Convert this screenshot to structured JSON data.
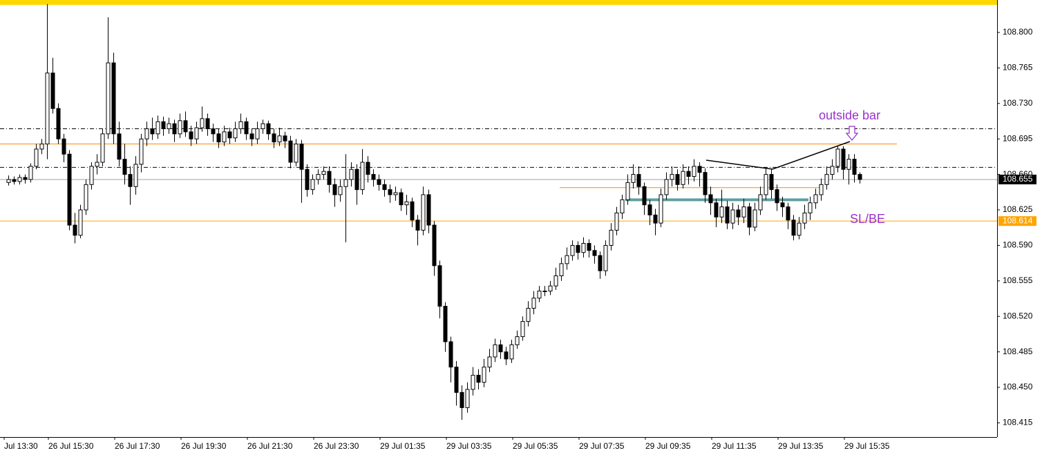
{
  "chart_data": {
    "type": "candlestick",
    "up_color": "#ffffff",
    "down_color": "#000000",
    "frame_color": "#ffd700",
    "ylim": [
      108.401,
      108.832
    ],
    "yticks": [
      108.415,
      {
        "value": 108.45,
        "label": "108.450"
      },
      108.485,
      {
        "value": 108.52,
        "label": "108.520"
      },
      108.555,
      {
        "value": 108.59,
        "label": "108.590"
      },
      108.625,
      {
        "value": 108.66,
        "label": "108.660"
      },
      108.695,
      {
        "value": 108.73,
        "label": "108.730"
      },
      108.765,
      {
        "value": 108.8,
        "label": "108.800"
      }
    ],
    "categories": [
      "Jul 13:30",
      null,
      null,
      null,
      null,
      null,
      null,
      null,
      "26 Jul 15:30",
      null,
      null,
      null,
      null,
      null,
      null,
      null,
      null,
      null,
      null,
      null,
      "26 Jul 17:30",
      null,
      null,
      null,
      null,
      null,
      null,
      null,
      null,
      null,
      null,
      null,
      "26 Jul 19:30",
      null,
      null,
      null,
      null,
      null,
      null,
      null,
      null,
      null,
      null,
      null,
      "26 Jul 21:30",
      null,
      null,
      null,
      null,
      null,
      null,
      null,
      null,
      null,
      null,
      null,
      "26 Jul 23:30",
      null,
      null,
      null,
      null,
      null,
      null,
      null,
      null,
      null,
      null,
      null,
      "29 Jul 01:35",
      null,
      null,
      null,
      null,
      null,
      null,
      null,
      null,
      null,
      null,
      null,
      "29 Jul 03:35",
      null,
      null,
      null,
      null,
      null,
      null,
      null,
      null,
      null,
      null,
      null,
      "29 Jul 05:35",
      null,
      null,
      null,
      null,
      null,
      null,
      null,
      null,
      null,
      null,
      null,
      "29 Jul 07:35",
      null,
      null,
      null,
      null,
      null,
      null,
      null,
      null,
      null,
      null,
      null,
      "29 Jul 09:35",
      null,
      null,
      null,
      null,
      null,
      null,
      null,
      null,
      null,
      null,
      null,
      "29 Jul 11:35",
      null,
      null,
      null,
      null,
      null,
      null,
      null,
      null,
      null,
      null,
      null,
      "29 Jul 13:35",
      null,
      null,
      null,
      null,
      null,
      null,
      null,
      null,
      null,
      null,
      null,
      "29 Jul 15:35",
      null,
      null
    ],
    "ohlc": [
      [
        108.652,
        108.659,
        108.649,
        108.655
      ],
      [
        108.655,
        108.658,
        108.65,
        108.653
      ],
      [
        108.653,
        108.66,
        108.65,
        108.657
      ],
      [
        108.657,
        108.66,
        108.651,
        108.655
      ],
      [
        108.655,
        108.671,
        108.652,
        108.668
      ],
      [
        108.668,
        108.69,
        108.665,
        108.685
      ],
      [
        108.685,
        108.695,
        108.68,
        108.69
      ],
      [
        108.69,
        108.828,
        108.675,
        108.76
      ],
      [
        108.76,
        108.775,
        108.72,
        108.725
      ],
      [
        108.725,
        108.73,
        108.69,
        108.695
      ],
      [
        108.695,
        108.7,
        108.672,
        108.68
      ],
      [
        108.68,
        108.684,
        108.605,
        108.61
      ],
      [
        108.61,
        108.622,
        108.592,
        108.6
      ],
      [
        108.6,
        108.63,
        108.597,
        108.625
      ],
      [
        108.625,
        108.655,
        108.62,
        108.65
      ],
      [
        108.65,
        108.672,
        108.645,
        108.668
      ],
      [
        108.668,
        108.68,
        108.66,
        108.672
      ],
      [
        108.672,
        108.705,
        108.668,
        108.7
      ],
      [
        108.7,
        108.815,
        108.695,
        108.77
      ],
      [
        108.77,
        108.78,
        108.69,
        108.7
      ],
      [
        108.7,
        108.712,
        108.668,
        108.675
      ],
      [
        108.675,
        108.69,
        108.65,
        108.66
      ],
      [
        108.66,
        108.668,
        108.63,
        108.648
      ],
      [
        108.648,
        108.678,
        108.64,
        108.67
      ],
      [
        108.67,
        108.7,
        108.662,
        108.695
      ],
      [
        108.695,
        108.712,
        108.688,
        108.705
      ],
      [
        108.705,
        108.716,
        108.694,
        108.7
      ],
      [
        108.7,
        108.718,
        108.695,
        108.712
      ],
      [
        108.712,
        108.717,
        108.698,
        108.705
      ],
      [
        108.705,
        108.716,
        108.7,
        108.71
      ],
      [
        108.71,
        108.714,
        108.692,
        108.7
      ],
      [
        108.7,
        108.72,
        108.696,
        108.713
      ],
      [
        108.713,
        108.722,
        108.697,
        108.702
      ],
      [
        108.702,
        108.708,
        108.688,
        108.695
      ],
      [
        108.695,
        108.712,
        108.69,
        108.706
      ],
      [
        108.706,
        108.727,
        108.702,
        108.715
      ],
      [
        108.715,
        108.72,
        108.698,
        108.705
      ],
      [
        108.705,
        108.71,
        108.692,
        108.7
      ],
      [
        108.7,
        108.705,
        108.686,
        108.692
      ],
      [
        108.692,
        108.708,
        108.688,
        108.702
      ],
      [
        108.702,
        108.706,
        108.69,
        108.696
      ],
      [
        108.696,
        108.712,
        108.692,
        108.705
      ],
      [
        108.705,
        108.72,
        108.7,
        108.712
      ],
      [
        108.712,
        108.716,
        108.694,
        108.7
      ],
      [
        108.7,
        108.705,
        108.688,
        108.695
      ],
      [
        108.695,
        108.712,
        108.69,
        108.705
      ],
      [
        108.705,
        108.714,
        108.7,
        108.71
      ],
      [
        108.71,
        108.713,
        108.694,
        108.7
      ],
      [
        108.7,
        108.705,
        108.686,
        108.692
      ],
      [
        108.692,
        108.706,
        108.688,
        108.698
      ],
      [
        108.698,
        108.702,
        108.686,
        108.693
      ],
      [
        108.693,
        108.698,
        108.666,
        108.672
      ],
      [
        108.672,
        108.695,
        108.668,
        108.69
      ],
      [
        108.69,
        108.694,
        108.632,
        108.665
      ],
      [
        108.665,
        108.67,
        108.638,
        108.645
      ],
      [
        108.645,
        108.66,
        108.64,
        108.655
      ],
      [
        108.655,
        108.665,
        108.65,
        108.66
      ],
      [
        108.66,
        108.668,
        108.655,
        108.663
      ],
      [
        108.663,
        108.668,
        108.642,
        108.65
      ],
      [
        108.65,
        108.656,
        108.628,
        108.64
      ],
      [
        108.64,
        108.655,
        108.633,
        108.648
      ],
      [
        108.648,
        108.68,
        108.593,
        108.655
      ],
      [
        108.655,
        108.672,
        108.648,
        108.665
      ],
      [
        108.665,
        108.67,
        108.63,
        108.645
      ],
      [
        108.645,
        108.685,
        108.64,
        108.672
      ],
      [
        108.672,
        108.678,
        108.652,
        108.66
      ],
      [
        108.66,
        108.665,
        108.648,
        108.655
      ],
      [
        108.655,
        108.66,
        108.644,
        108.65
      ],
      [
        108.65,
        108.655,
        108.638,
        108.645
      ],
      [
        108.645,
        108.65,
        108.632,
        108.64
      ],
      [
        108.64,
        108.648,
        108.634,
        108.642
      ],
      [
        108.642,
        108.646,
        108.624,
        108.63
      ],
      [
        108.63,
        108.64,
        108.62,
        108.633
      ],
      [
        108.633,
        108.637,
        108.608,
        108.615
      ],
      [
        108.615,
        108.62,
        108.59,
        108.605
      ],
      [
        108.605,
        108.648,
        108.6,
        108.64
      ],
      [
        108.64,
        108.645,
        108.602,
        108.61
      ],
      [
        108.61,
        108.614,
        108.56,
        108.57
      ],
      [
        108.57,
        108.575,
        108.518,
        108.53
      ],
      [
        108.53,
        108.534,
        108.485,
        108.495
      ],
      [
        108.495,
        108.5,
        108.455,
        108.47
      ],
      [
        108.47,
        108.476,
        108.432,
        108.445
      ],
      [
        108.445,
        108.452,
        108.418,
        108.43
      ],
      [
        108.43,
        108.455,
        108.425,
        108.448
      ],
      [
        108.448,
        108.47,
        108.442,
        108.462
      ],
      [
        108.462,
        108.468,
        108.448,
        108.455
      ],
      [
        108.455,
        108.478,
        108.45,
        108.47
      ],
      [
        108.47,
        108.488,
        108.465,
        108.48
      ],
      [
        108.48,
        108.498,
        108.475,
        108.492
      ],
      [
        108.492,
        108.497,
        108.478,
        108.485
      ],
      [
        108.485,
        108.49,
        108.472,
        108.478
      ],
      [
        108.478,
        108.497,
        108.474,
        108.492
      ],
      [
        108.492,
        108.506,
        108.488,
        108.5
      ],
      [
        108.5,
        108.52,
        108.496,
        108.515
      ],
      [
        108.515,
        108.535,
        108.51,
        108.528
      ],
      [
        108.528,
        108.545,
        108.522,
        108.538
      ],
      [
        108.538,
        108.55,
        108.534,
        108.545
      ],
      [
        108.545,
        108.55,
        108.54,
        108.545
      ],
      [
        108.545,
        108.555,
        108.541,
        108.55
      ],
      [
        108.55,
        108.568,
        108.546,
        108.56
      ],
      [
        108.56,
        108.578,
        108.555,
        108.572
      ],
      [
        108.572,
        108.588,
        108.566,
        108.58
      ],
      [
        108.58,
        108.595,
        108.575,
        108.59
      ],
      [
        108.59,
        108.594,
        108.576,
        108.583
      ],
      [
        108.583,
        108.598,
        108.578,
        108.592
      ],
      [
        108.592,
        108.596,
        108.578,
        108.585
      ],
      [
        108.585,
        108.59,
        108.572,
        108.58
      ],
      [
        108.58,
        108.584,
        108.557,
        108.565
      ],
      [
        108.565,
        108.595,
        108.56,
        108.59
      ],
      [
        108.59,
        108.612,
        108.585,
        108.605
      ],
      [
        108.605,
        108.628,
        108.6,
        108.622
      ],
      [
        108.622,
        108.64,
        108.616,
        108.635
      ],
      [
        108.635,
        108.66,
        108.63,
        108.652
      ],
      [
        108.652,
        108.67,
        108.646,
        108.66
      ],
      [
        108.66,
        108.668,
        108.64,
        108.648
      ],
      [
        108.648,
        108.652,
        108.62,
        108.63
      ],
      [
        108.63,
        108.635,
        108.61,
        108.62
      ],
      [
        108.62,
        108.626,
        108.6,
        108.612
      ],
      [
        108.612,
        108.646,
        108.608,
        108.64
      ],
      [
        108.64,
        108.662,
        108.635,
        108.655
      ],
      [
        108.655,
        108.668,
        108.648,
        108.66
      ],
      [
        108.66,
        108.665,
        108.644,
        108.65
      ],
      [
        108.65,
        108.67,
        108.646,
        108.663
      ],
      [
        108.663,
        108.668,
        108.65,
        108.658
      ],
      [
        108.658,
        108.675,
        108.653,
        108.668
      ],
      [
        108.668,
        108.672,
        108.648,
        108.662
      ],
      [
        108.662,
        108.666,
        108.632,
        108.64
      ],
      [
        108.64,
        108.648,
        108.62,
        108.632
      ],
      [
        108.632,
        108.636,
        108.608,
        108.618
      ],
      [
        108.618,
        108.645,
        108.612,
        108.628
      ],
      [
        108.628,
        108.634,
        108.606,
        108.612
      ],
      [
        108.612,
        108.632,
        108.606,
        108.625
      ],
      [
        108.625,
        108.63,
        108.61,
        108.618
      ],
      [
        108.618,
        108.636,
        108.612,
        108.628
      ],
      [
        108.628,
        108.632,
        108.6,
        108.608
      ],
      [
        108.608,
        108.632,
        108.604,
        108.625
      ],
      [
        108.625,
        108.648,
        108.62,
        108.64
      ],
      [
        108.64,
        108.667,
        108.635,
        108.66
      ],
      [
        108.66,
        108.665,
        108.636,
        108.645
      ],
      [
        108.645,
        108.65,
        108.624,
        108.632
      ],
      [
        108.632,
        108.638,
        108.618,
        108.628
      ],
      [
        108.628,
        108.632,
        108.606,
        108.615
      ],
      [
        108.615,
        108.62,
        108.595,
        108.6
      ],
      [
        108.6,
        108.618,
        108.596,
        108.612
      ],
      [
        108.612,
        108.63,
        108.606,
        108.622
      ],
      [
        108.622,
        108.638,
        108.615,
        108.632
      ],
      [
        108.632,
        108.646,
        108.626,
        108.64
      ],
      [
        108.64,
        108.656,
        108.634,
        108.65
      ],
      [
        108.65,
        108.668,
        108.645,
        108.66
      ],
      [
        108.66,
        108.675,
        108.655,
        108.668
      ],
      [
        108.668,
        108.688,
        108.662,
        108.685
      ],
      [
        108.685,
        108.688,
        108.655,
        108.665
      ],
      [
        108.665,
        108.68,
        108.65,
        108.675
      ],
      [
        108.675,
        108.68,
        108.652,
        108.66
      ],
      [
        108.66,
        108.662,
        108.651,
        108.655
      ]
    ],
    "levels": [
      {
        "value": 108.705,
        "color": "#000000",
        "style": "dashdot"
      },
      {
        "value": 108.69,
        "color": "#ff8c00",
        "style": "solid"
      },
      {
        "value": 108.667,
        "color": "#000000",
        "style": "dashdot"
      },
      {
        "value": 108.655,
        "color": "#a0a0a0",
        "style": "solid"
      },
      {
        "value": 108.647,
        "color": "#ff8c00",
        "style": "solid"
      },
      {
        "value": 108.635,
        "color": "#5f9ea0",
        "style": "thick"
      },
      {
        "value": 108.614,
        "color": "#ffa500",
        "style": "solid"
      }
    ],
    "price_labels": [
      {
        "value": 108.655,
        "color": "#000000"
      },
      {
        "value": 108.614,
        "color": "#ffa500"
      }
    ],
    "annotations": [
      {
        "text": "outside bar",
        "color": "#9932cc"
      },
      {
        "text": "SL/BE",
        "color": "#9932cc"
      }
    ]
  }
}
